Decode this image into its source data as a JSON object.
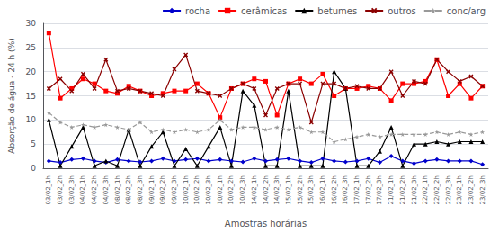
{
  "chart_data": {
    "type": "line",
    "xlabel": "Amostras horárias",
    "ylabel": "Absorção de água - 24 h (%)",
    "categories": [
      "03/02_1h",
      "03/02_2h",
      "03/02_3h",
      "04/02_1h",
      "04/02_2h",
      "04/02_3h",
      "08/02_1h",
      "08/02_2h",
      "08/02_3h",
      "09/02_1h",
      "09/02_2h",
      "09/02_3h",
      "10/02_1h",
      "10/02_2h",
      "10/02_3h",
      "10/02_1h",
      "10/02_2h",
      "10/02_3h",
      "14/02_1h",
      "14/02_2h",
      "14/02_3h",
      "15/02_1h",
      "15/02_2h",
      "15/02_3h",
      "16/02_1h",
      "16/02_2h",
      "16/02_3h",
      "17/02_1h",
      "17/02_2h",
      "17/02_3h",
      "21/02_1h",
      "21/02_2h",
      "21/02_3h",
      "22/02_1h",
      "22/02_2h",
      "22/02_3h",
      "23/02_1h",
      "23/02_2h",
      "23/02_3h"
    ],
    "series": [
      {
        "name": "rocha",
        "color": "#0000cc",
        "marker": "diamond",
        "line_style": "solid",
        "values": [
          1.5,
          1.2,
          1.8,
          2.0,
          1.5,
          1.2,
          1.8,
          1.5,
          1.3,
          1.5,
          2.0,
          1.5,
          1.8,
          2.0,
          1.5,
          1.8,
          1.5,
          1.3,
          2.0,
          1.5,
          1.8,
          2.0,
          1.5,
          1.2,
          2.0,
          1.5,
          1.3,
          1.5,
          2.0,
          1.2,
          2.5,
          1.5,
          1.0,
          1.5,
          1.8,
          1.5,
          1.5,
          1.5,
          0.8
        ]
      },
      {
        "name": "cerâmicas",
        "color": "#ff0000",
        "marker": "square",
        "line_style": "solid",
        "values": [
          28.0,
          14.5,
          16.5,
          18.5,
          17.5,
          16.0,
          15.5,
          17.0,
          16.0,
          15.0,
          15.5,
          16.0,
          16.0,
          17.5,
          15.5,
          10.5,
          16.5,
          17.5,
          18.5,
          18.0,
          11.0,
          17.5,
          18.5,
          17.5,
          19.5,
          15.0,
          16.5,
          16.5,
          17.0,
          16.5,
          14.0,
          17.5,
          17.5,
          18.0,
          22.5,
          15.0,
          17.5,
          14.5,
          17.0
        ]
      },
      {
        "name": "betumes",
        "color": "#000000",
        "marker": "triangle",
        "line_style": "solid",
        "values": [
          10.0,
          0.5,
          4.5,
          8.5,
          0.5,
          1.5,
          0.5,
          8.0,
          0.5,
          4.5,
          7.5,
          0.5,
          4.0,
          0.5,
          4.5,
          8.5,
          0.5,
          16.0,
          13.0,
          0.5,
          0.5,
          16.0,
          0.5,
          0.5,
          0.5,
          20.0,
          16.5,
          0.5,
          0.5,
          3.5,
          8.5,
          0.5,
          5.0,
          5.0,
          5.5,
          5.0,
          5.5,
          5.5,
          5.5
        ]
      },
      {
        "name": "outros",
        "color": "#8b0000",
        "marker": "x",
        "line_style": "solid",
        "values": [
          16.5,
          18.5,
          16.0,
          19.5,
          16.5,
          22.5,
          16.0,
          16.5,
          16.0,
          15.5,
          15.0,
          20.5,
          23.5,
          16.0,
          15.5,
          15.0,
          16.5,
          17.5,
          16.5,
          11.0,
          16.5,
          17.5,
          17.5,
          9.5,
          17.5,
          17.5,
          16.5,
          17.0,
          16.5,
          16.5,
          20.0,
          15.0,
          18.0,
          17.5,
          22.5,
          20.0,
          18.0,
          19.0,
          17.0
        ]
      },
      {
        "name": "conc/arg",
        "color": "#999999",
        "marker": "star",
        "line_style": "dashed",
        "values": [
          11.5,
          9.5,
          8.5,
          9.0,
          8.5,
          9.0,
          8.5,
          8.0,
          9.5,
          7.5,
          8.0,
          7.5,
          8.0,
          7.5,
          8.0,
          10.0,
          8.0,
          8.5,
          8.5,
          8.0,
          8.5,
          8.0,
          8.5,
          7.5,
          7.5,
          5.5,
          6.0,
          6.5,
          7.0,
          6.5,
          7.0,
          7.0,
          7.0,
          7.0,
          7.5,
          7.0,
          7.5,
          7.0,
          7.5
        ]
      }
    ],
    "ylim": [
      0,
      30
    ],
    "yticks": [
      0,
      5,
      10,
      15,
      20,
      25,
      30
    ],
    "grid": true,
    "legend": "upper right"
  }
}
